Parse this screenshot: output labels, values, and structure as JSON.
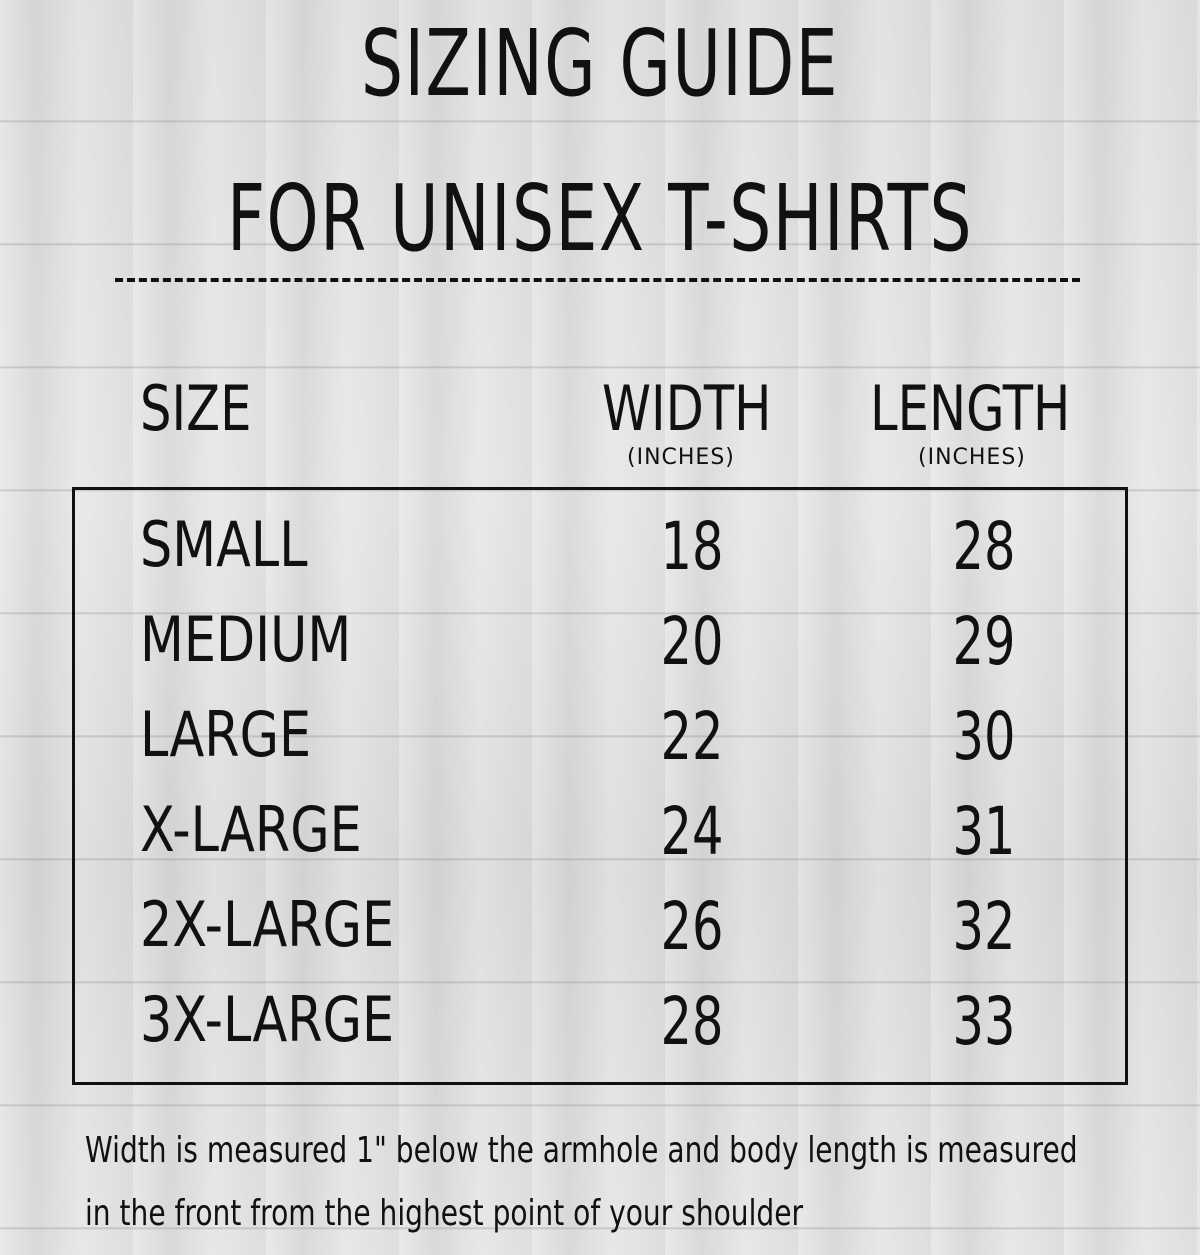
{
  "title": {
    "line1": "SIZING GUIDE",
    "line2": "FOR UNISEX T-SHIRTS"
  },
  "headers": {
    "size": "SIZE",
    "width": "WIDTH",
    "width_unit": "(INCHES)",
    "length": "LENGTH",
    "length_unit": "(INCHES)"
  },
  "rows": [
    {
      "size": "SMALL",
      "width": "18",
      "length": "28"
    },
    {
      "size": "MEDIUM",
      "width": "20",
      "length": "29"
    },
    {
      "size": "LARGE",
      "width": "22",
      "length": "30"
    },
    {
      "size": "X-LARGE",
      "width": "24",
      "length": "31"
    },
    {
      "size": "2X-LARGE",
      "width": "26",
      "length": "32"
    },
    {
      "size": "3X-LARGE",
      "width": "28",
      "length": "33"
    }
  ],
  "footer": {
    "line1": "Width is measured 1\" below the armhole and body length is measured",
    "line2": "in the front from the highest point of your shoulder"
  }
}
